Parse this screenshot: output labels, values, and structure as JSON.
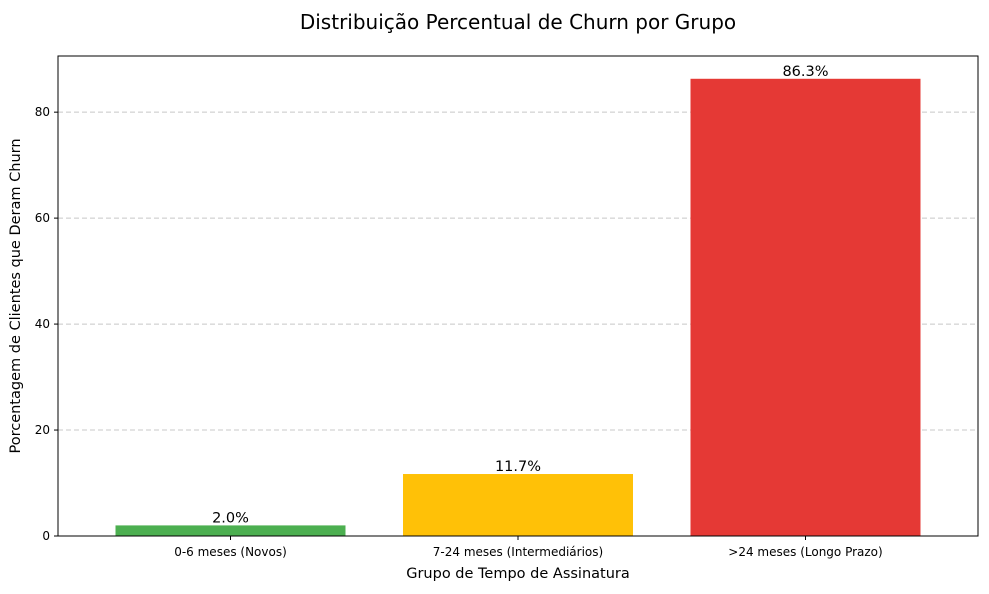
{
  "chart_data": {
    "type": "bar",
    "title": "Distribuição Percentual de Churn por Grupo",
    "xlabel": "Grupo de Tempo de Assinatura",
    "ylabel": "Porcentagem de Clientes que Deram Churn",
    "categories": [
      "0-6 meses (Novos)",
      "7-24 meses (Intermediários)",
      ">24 meses (Longo Prazo)"
    ],
    "values": [
      2.0,
      11.7,
      86.3
    ],
    "data_labels": [
      "2.0%",
      "11.7%",
      "86.3%"
    ],
    "bar_colors": [
      "#4caf50",
      "#ffc107",
      "#e53935"
    ],
    "ylim": [
      0,
      90.6
    ],
    "yticks": [
      0,
      20,
      40,
      60,
      80
    ],
    "ytick_labels": [
      "0",
      "20",
      "40",
      "60",
      "80"
    ],
    "grid": "y-dashed",
    "grid_color": "#c8c8c8",
    "legend": "none"
  }
}
